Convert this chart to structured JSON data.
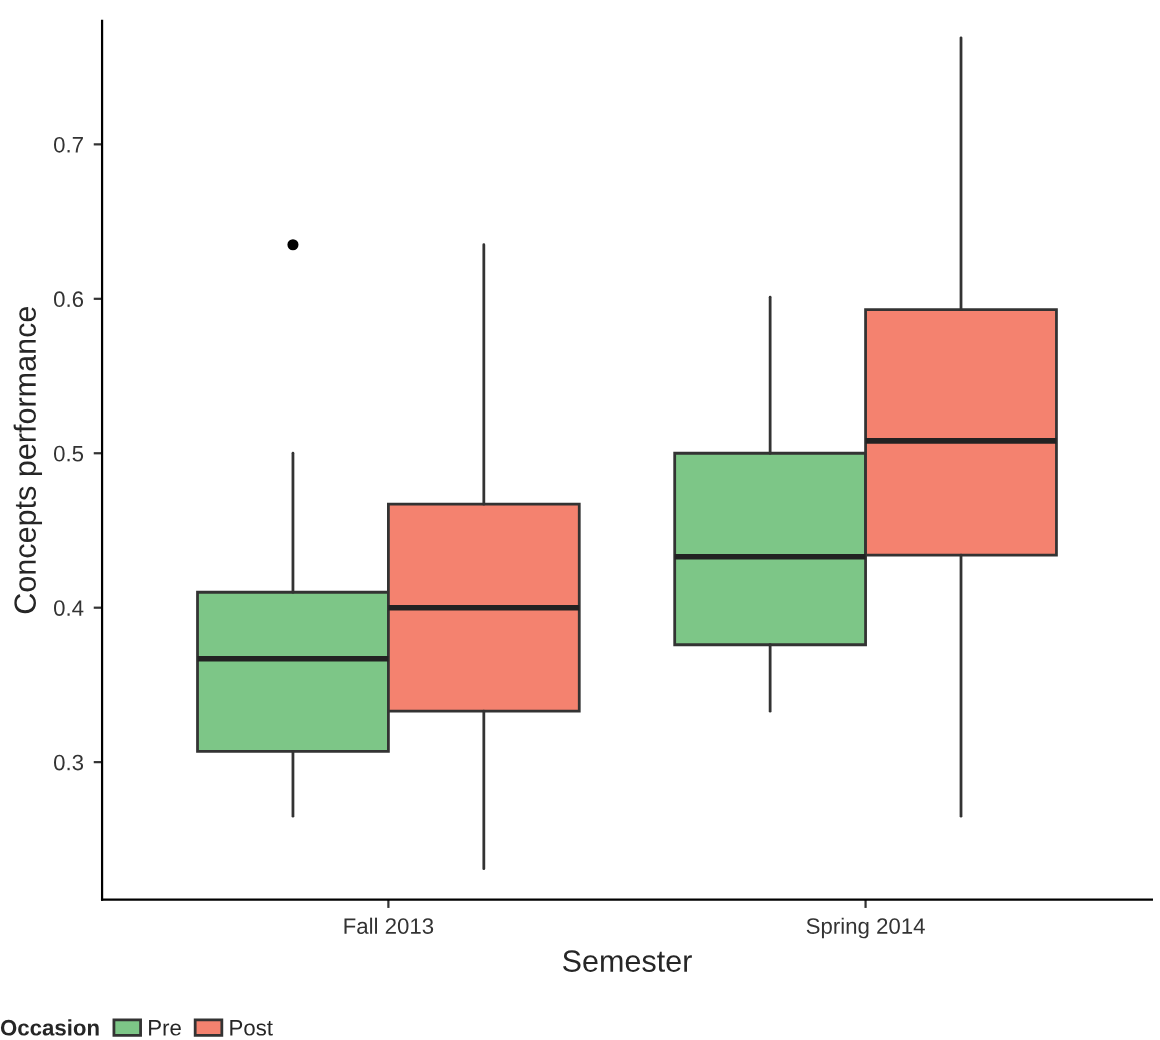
{
  "chart_data": {
    "type": "box",
    "xlabel": "Semester",
    "ylabel": "Concepts performance",
    "legend_title": "Occasion",
    "legend": "bottom",
    "grid": false,
    "categories": [
      "Fall 2013",
      "Spring 2014"
    ],
    "ylim": [
      0.211,
      0.78
    ],
    "yticks": [
      0.3,
      0.4,
      0.5,
      0.6,
      0.7
    ],
    "series": [
      {
        "name": "Pre",
        "color": "#7dc687",
        "boxes": [
          {
            "low": 0.265,
            "q1": 0.307,
            "median": 0.367,
            "q3": 0.41,
            "high": 0.5,
            "outliers": [
              0.635
            ]
          },
          {
            "low": 0.333,
            "q1": 0.376,
            "median": 0.433,
            "q3": 0.5,
            "high": 0.601
          }
        ]
      },
      {
        "name": "Post",
        "color": "#f4826f",
        "boxes": [
          {
            "low": 0.231,
            "q1": 0.333,
            "median": 0.4,
            "q3": 0.467,
            "high": 0.635
          },
          {
            "low": 0.265,
            "q1": 0.434,
            "median": 0.508,
            "q3": 0.593,
            "high": 0.769
          }
        ]
      }
    ]
  }
}
